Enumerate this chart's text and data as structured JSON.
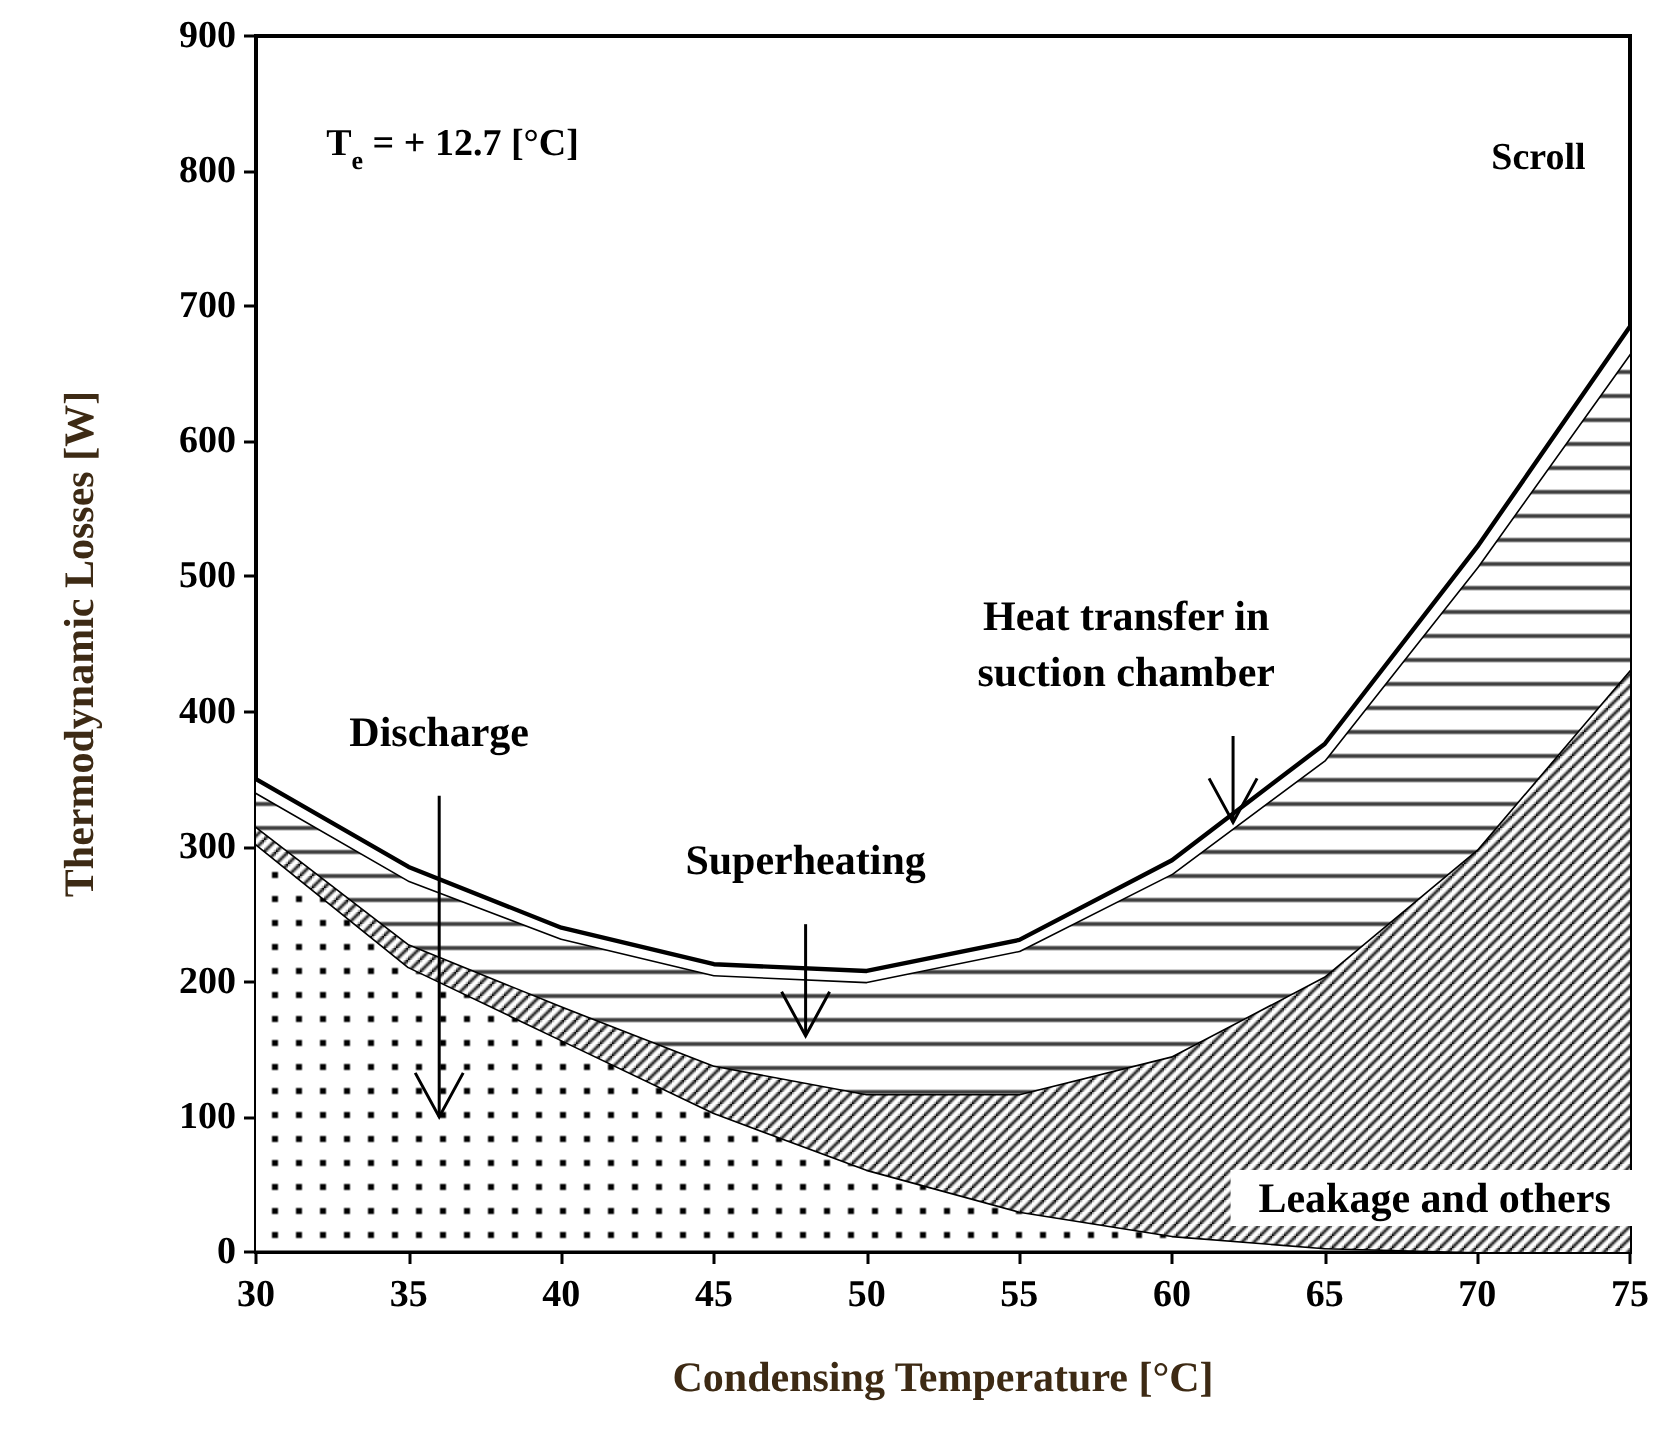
{
  "chart_data": {
    "type": "area",
    "stacked": true,
    "marker": "none",
    "xlabel": "Condensing Temperature [°C]",
    "ylabel": "Thermodynamic Losses [W]",
    "x": [
      30,
      35,
      40,
      45,
      50,
      55,
      60,
      65,
      70,
      75
    ],
    "series": [
      {
        "name": "Discharge",
        "color": "#000000",
        "values": [
          302,
          211,
          157,
          103,
          61,
          30,
          12,
          3,
          0,
          0
        ]
      },
      {
        "name": "Leakage and others",
        "color": "#000000",
        "values": [
          13,
          17,
          25,
          35,
          56,
          87,
          133,
          201,
          298,
          431
        ]
      },
      {
        "name": "Superheating",
        "color": "#000000",
        "values": [
          25,
          47,
          50,
          67,
          83,
          106,
          135,
          160,
          209,
          234
        ]
      },
      {
        "name": "Heat transfer in suction chamber",
        "color": "#ffffff",
        "values": [
          10,
          10,
          8,
          8,
          8,
          8,
          10,
          12,
          15,
          20
        ]
      }
    ],
    "annotations": [
      "T$_{e}$ = + 12.7 [°C]",
      "Scroll"
    ],
    "xlim": [
      30,
      75
    ],
    "xticks": [
      30,
      35,
      40,
      45,
      50,
      55,
      60,
      65,
      70,
      75
    ],
    "ylim": [
      0,
      900
    ],
    "yticks": [
      0,
      100,
      200,
      300,
      400,
      500,
      600,
      700,
      800,
      900
    ]
  }
}
